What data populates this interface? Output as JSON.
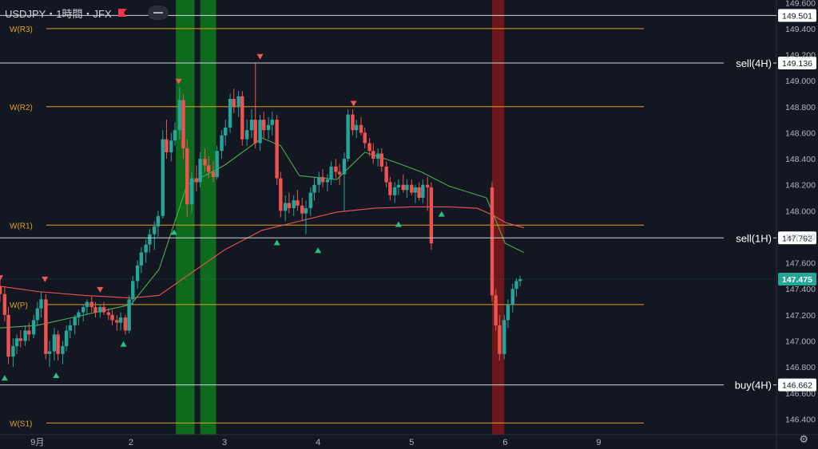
{
  "header": {
    "symbol": "USDJPY・1時間・JFX"
  },
  "colors": {
    "background": "#131722",
    "up": "#26a69a",
    "down": "#ef5350",
    "pivot": "#e0a020",
    "ma_fast": "#ef5350",
    "ma_slow": "#4caf50",
    "hline": "#d1d4dc",
    "green_zone": "#0e7a1c",
    "red_zone": "#8a1a1a"
  },
  "chart_data": {
    "type": "candlestick",
    "symbol": "USDJPY",
    "timeframe": "1時間",
    "ylim": [
      146.28,
      149.62
    ],
    "x_range": [
      -0.4,
      7.9
    ],
    "y_ticks": [
      "149.600",
      "149.400",
      "149.200",
      "149.000",
      "148.800",
      "148.600",
      "148.400",
      "148.200",
      "148.000",
      "147.800",
      "147.600",
      "147.400",
      "147.200",
      "147.000",
      "146.800",
      "146.600",
      "146.400"
    ],
    "x_ticks": [
      {
        "x": 0.0,
        "label": "9月"
      },
      {
        "x": 1.0,
        "label": "2"
      },
      {
        "x": 2.0,
        "label": "3"
      },
      {
        "x": 3.0,
        "label": "4"
      },
      {
        "x": 4.0,
        "label": "5"
      },
      {
        "x": 5.0,
        "label": "6"
      },
      {
        "x": 6.0,
        "label": "9"
      }
    ],
    "pivot_levels": [
      {
        "label": "W(R3)",
        "value": 149.4
      },
      {
        "label": "W(R2)",
        "value": 148.8
      },
      {
        "label": "W(R1)",
        "value": 147.89
      },
      {
        "label": "W(P)",
        "value": 147.28
      },
      {
        "label": "W(S1)",
        "value": 146.37
      }
    ],
    "price_lines": [
      {
        "label": "",
        "value": 149.501
      },
      {
        "label": "sell(4H)",
        "value": 149.136
      },
      {
        "label": "sell(1H)",
        "value": 147.792
      },
      {
        "label": "buy(4H)",
        "value": 146.662
      }
    ],
    "last_price": 147.475,
    "last_price_label": "147.475",
    "zones": [
      {
        "color": "green",
        "x0": 1.48,
        "x1": 1.68
      },
      {
        "color": "green",
        "x0": 1.74,
        "x1": 1.91
      },
      {
        "color": "red",
        "x0": 4.86,
        "x1": 4.99
      }
    ],
    "candles": [
      [
        -0.4,
        147.42,
        147.48,
        147.3,
        147.36
      ],
      [
        -0.35,
        147.36,
        147.42,
        147.15,
        147.2
      ],
      [
        -0.31,
        147.2,
        147.26,
        146.82,
        146.88
      ],
      [
        -0.26,
        146.88,
        147.02,
        146.8,
        146.96
      ],
      [
        -0.22,
        146.96,
        147.05,
        146.9,
        147.02
      ],
      [
        -0.18,
        147.02,
        147.08,
        146.95,
        147.0
      ],
      [
        -0.13,
        147.0,
        147.12,
        146.96,
        147.08
      ],
      [
        -0.09,
        147.08,
        147.14,
        147.0,
        147.05
      ],
      [
        -0.04,
        147.05,
        147.2,
        147.02,
        147.16
      ],
      [
        0.0,
        147.16,
        147.3,
        147.12,
        147.25
      ],
      [
        0.04,
        147.25,
        147.38,
        147.18,
        147.32
      ],
      [
        0.09,
        147.32,
        147.36,
        146.86,
        146.9
      ],
      [
        0.13,
        146.9,
        147.0,
        146.8,
        146.92
      ],
      [
        0.18,
        146.92,
        147.1,
        146.85,
        147.05
      ],
      [
        0.22,
        147.05,
        147.08,
        146.85,
        146.9
      ],
      [
        0.27,
        146.9,
        147.0,
        146.82,
        146.96
      ],
      [
        0.31,
        146.96,
        147.12,
        146.92,
        147.08
      ],
      [
        0.35,
        147.08,
        147.16,
        147.02,
        147.12
      ],
      [
        0.4,
        147.12,
        147.2,
        147.05,
        147.18
      ],
      [
        0.44,
        147.18,
        147.24,
        147.12,
        147.22
      ],
      [
        0.49,
        147.22,
        147.28,
        147.15,
        147.26
      ],
      [
        0.53,
        147.26,
        147.32,
        147.2,
        147.3
      ],
      [
        0.58,
        147.3,
        147.34,
        147.22,
        147.26
      ],
      [
        0.62,
        147.26,
        147.3,
        147.18,
        147.22
      ],
      [
        0.67,
        147.22,
        147.28,
        147.18,
        147.26
      ],
      [
        0.71,
        147.26,
        147.3,
        147.2,
        147.22
      ],
      [
        0.76,
        147.22,
        147.25,
        147.16,
        147.2
      ],
      [
        0.8,
        147.2,
        147.24,
        147.12,
        147.16
      ],
      [
        0.85,
        147.16,
        147.2,
        147.08,
        147.14
      ],
      [
        0.89,
        147.14,
        147.22,
        147.08,
        147.18
      ],
      [
        0.94,
        147.18,
        147.2,
        147.05,
        147.08
      ],
      [
        0.98,
        147.08,
        147.35,
        147.06,
        147.32
      ],
      [
        1.02,
        147.32,
        147.5,
        147.28,
        147.46
      ],
      [
        1.07,
        147.46,
        147.62,
        147.4,
        147.58
      ],
      [
        1.11,
        147.58,
        147.72,
        147.52,
        147.68
      ],
      [
        1.16,
        147.68,
        147.78,
        147.6,
        147.74
      ],
      [
        1.2,
        147.74,
        147.86,
        147.68,
        147.82
      ],
      [
        1.25,
        147.82,
        147.92,
        147.7,
        147.88
      ],
      [
        1.29,
        147.88,
        148.0,
        147.8,
        147.96
      ],
      [
        1.34,
        147.96,
        148.62,
        147.94,
        148.55
      ],
      [
        1.38,
        148.55,
        148.7,
        148.4,
        148.45
      ],
      [
        1.43,
        148.45,
        148.6,
        148.38,
        148.54
      ],
      [
        1.47,
        148.54,
        148.68,
        148.5,
        148.62
      ],
      [
        1.52,
        148.62,
        148.95,
        148.55,
        148.85
      ],
      [
        1.56,
        148.85,
        148.9,
        148.4,
        148.48
      ],
      [
        1.6,
        148.48,
        148.55,
        147.95,
        148.05
      ],
      [
        1.65,
        148.05,
        148.3,
        147.98,
        148.25
      ],
      [
        1.7,
        148.25,
        148.35,
        148.15,
        148.22
      ],
      [
        1.74,
        148.22,
        148.45,
        148.18,
        148.4
      ],
      [
        1.79,
        148.4,
        148.48,
        148.3,
        148.35
      ],
      [
        1.83,
        148.35,
        148.42,
        148.25,
        148.3
      ],
      [
        1.88,
        148.3,
        148.38,
        148.22,
        148.26
      ],
      [
        1.92,
        148.26,
        148.5,
        148.24,
        148.46
      ],
      [
        1.97,
        148.46,
        148.62,
        148.4,
        148.58
      ],
      [
        2.01,
        148.58,
        148.7,
        148.5,
        148.64
      ],
      [
        2.06,
        148.64,
        148.9,
        148.6,
        148.86
      ],
      [
        2.1,
        148.86,
        148.94,
        148.75,
        148.8
      ],
      [
        2.15,
        148.8,
        148.92,
        148.72,
        148.88
      ],
      [
        2.19,
        148.88,
        148.92,
        148.5,
        148.55
      ],
      [
        2.24,
        148.55,
        148.7,
        148.5,
        148.62
      ],
      [
        2.29,
        148.62,
        148.78,
        148.56,
        148.7
      ],
      [
        2.33,
        148.7,
        149.14,
        148.48,
        148.52
      ],
      [
        2.38,
        148.52,
        148.74,
        148.46,
        148.7
      ],
      [
        2.42,
        148.7,
        148.76,
        148.56,
        148.62
      ],
      [
        2.47,
        148.62,
        148.72,
        148.55,
        148.66
      ],
      [
        2.51,
        148.66,
        148.76,
        148.58,
        148.7
      ],
      [
        2.56,
        148.7,
        148.74,
        148.2,
        148.25
      ],
      [
        2.6,
        148.25,
        148.3,
        147.95,
        148.0
      ],
      [
        2.65,
        148.0,
        148.12,
        147.92,
        148.06
      ],
      [
        2.69,
        148.06,
        148.14,
        147.98,
        148.02
      ],
      [
        2.74,
        148.02,
        148.12,
        147.96,
        148.08
      ],
      [
        2.78,
        148.08,
        148.16,
        148.0,
        148.04
      ],
      [
        2.83,
        148.04,
        148.1,
        147.92,
        147.98
      ],
      [
        2.87,
        147.98,
        148.08,
        147.82,
        148.02
      ],
      [
        2.92,
        148.02,
        148.18,
        147.96,
        148.14
      ],
      [
        2.96,
        148.14,
        148.26,
        148.08,
        148.2
      ],
      [
        3.01,
        148.2,
        148.3,
        148.14,
        148.26
      ],
      [
        3.05,
        148.26,
        148.32,
        148.18,
        148.22
      ],
      [
        3.1,
        148.22,
        148.28,
        148.15,
        148.24
      ],
      [
        3.14,
        148.24,
        148.38,
        148.2,
        148.34
      ],
      [
        3.19,
        148.34,
        148.4,
        148.25,
        148.3
      ],
      [
        3.23,
        148.3,
        148.36,
        148.2,
        148.28
      ],
      [
        3.28,
        148.28,
        148.45,
        148.0,
        148.4
      ],
      [
        3.32,
        148.4,
        148.78,
        148.38,
        148.74
      ],
      [
        3.37,
        148.74,
        148.78,
        148.58,
        148.62
      ],
      [
        3.41,
        148.62,
        148.7,
        148.56,
        148.66
      ],
      [
        3.46,
        148.66,
        148.72,
        148.58,
        148.6
      ],
      [
        3.5,
        148.6,
        148.64,
        148.48,
        148.52
      ],
      [
        3.55,
        148.52,
        148.56,
        148.42,
        148.46
      ],
      [
        3.59,
        148.46,
        148.52,
        148.36,
        148.4
      ],
      [
        3.64,
        148.4,
        148.48,
        148.34,
        148.44
      ],
      [
        3.68,
        148.44,
        148.48,
        148.3,
        148.34
      ],
      [
        3.73,
        148.34,
        148.38,
        148.18,
        148.22
      ],
      [
        3.77,
        148.22,
        148.26,
        148.08,
        148.12
      ],
      [
        3.82,
        148.12,
        148.22,
        148.06,
        148.18
      ],
      [
        3.86,
        148.18,
        148.24,
        148.12,
        148.2
      ],
      [
        3.91,
        148.2,
        148.28,
        148.14,
        148.16
      ],
      [
        3.95,
        148.16,
        148.24,
        148.1,
        148.2
      ],
      [
        4.0,
        148.2,
        148.24,
        148.12,
        148.14
      ],
      [
        4.04,
        148.14,
        148.2,
        148.06,
        148.18
      ],
      [
        4.08,
        148.18,
        148.22,
        148.08,
        148.1
      ],
      [
        4.12,
        148.1,
        148.24,
        148.06,
        148.2
      ],
      [
        4.17,
        148.2,
        148.26,
        148.0,
        148.18
      ],
      [
        4.21,
        148.18,
        148.22,
        147.7,
        147.75
      ]
    ],
    "candles_tail": [
      [
        4.86,
        148.18,
        148.22,
        147.3,
        147.35
      ],
      [
        4.9,
        147.35,
        147.4,
        147.08,
        147.12
      ],
      [
        4.94,
        147.12,
        147.2,
        146.85,
        146.9
      ],
      [
        4.99,
        146.9,
        147.2,
        146.86,
        147.16
      ],
      [
        5.03,
        147.16,
        147.32,
        147.1,
        147.28
      ],
      [
        5.08,
        147.28,
        147.44,
        147.22,
        147.4
      ],
      [
        5.12,
        147.4,
        147.48,
        147.34,
        147.46
      ],
      [
        5.16,
        147.46,
        147.5,
        147.42,
        147.475
      ]
    ],
    "ma_fast": [
      [
        -0.4,
        147.42
      ],
      [
        0.0,
        147.38
      ],
      [
        0.5,
        147.35
      ],
      [
        1.0,
        147.33
      ],
      [
        1.3,
        147.35
      ],
      [
        1.6,
        147.5
      ],
      [
        2.0,
        147.7
      ],
      [
        2.4,
        147.85
      ],
      [
        2.8,
        147.92
      ],
      [
        3.2,
        147.99
      ],
      [
        3.6,
        148.02
      ],
      [
        4.0,
        148.03
      ],
      [
        4.4,
        148.03
      ],
      [
        4.7,
        148.02
      ],
      [
        4.86,
        147.97
      ],
      [
        5.0,
        147.91
      ],
      [
        5.2,
        147.87
      ]
    ],
    "ma_slow": [
      [
        -0.4,
        147.1
      ],
      [
        0.0,
        147.12
      ],
      [
        0.5,
        147.2
      ],
      [
        1.0,
        147.28
      ],
      [
        1.3,
        147.55
      ],
      [
        1.6,
        148.2
      ],
      [
        2.0,
        148.35
      ],
      [
        2.4,
        148.56
      ],
      [
        2.6,
        148.5
      ],
      [
        2.8,
        148.27
      ],
      [
        3.2,
        148.24
      ],
      [
        3.5,
        148.45
      ],
      [
        3.8,
        148.38
      ],
      [
        4.1,
        148.3
      ],
      [
        4.4,
        148.19
      ],
      [
        4.8,
        148.1
      ],
      [
        5.0,
        147.75
      ],
      [
        5.2,
        147.68
      ]
    ],
    "triangles_up": [
      [
        -0.35,
        146.72
      ],
      [
        0.2,
        146.74
      ],
      [
        0.92,
        146.98
      ],
      [
        1.46,
        147.84
      ],
      [
        2.56,
        147.76
      ],
      [
        3.0,
        147.7
      ],
      [
        3.86,
        147.9
      ],
      [
        4.32,
        147.98
      ]
    ],
    "triangles_down": [
      [
        -0.4,
        147.48
      ],
      [
        0.08,
        147.47
      ],
      [
        0.67,
        147.39
      ],
      [
        1.51,
        148.99
      ],
      [
        2.38,
        149.18
      ],
      [
        3.38,
        148.82
      ]
    ]
  }
}
